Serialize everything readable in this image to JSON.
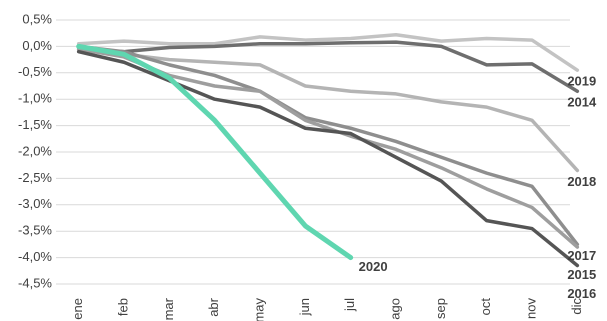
{
  "chart_data": {
    "type": "line",
    "categories": [
      "ene",
      "feb",
      "mar",
      "abr",
      "may",
      "jun",
      "jul",
      "ago",
      "sep",
      "oct",
      "nov",
      "dic"
    ],
    "series": [
      {
        "name": "2019",
        "color": "#c3c3c3",
        "values": [
          0.05,
          0.1,
          0.05,
          0.05,
          0.18,
          0.12,
          0.15,
          0.22,
          0.1,
          0.15,
          0.12,
          -0.45
        ]
      },
      {
        "name": "2014",
        "color": "#6e6e6e",
        "values": [
          -0.05,
          -0.1,
          -0.02,
          0,
          0.05,
          0.05,
          0.07,
          0.08,
          0,
          -0.35,
          -0.33,
          -0.85
        ]
      },
      {
        "name": "2018",
        "color": "#b4b4b4",
        "values": [
          -0.02,
          -0.15,
          -0.25,
          -0.3,
          -0.35,
          -0.75,
          -0.85,
          -0.9,
          -1.05,
          -1.15,
          -1.4,
          -2.35
        ]
      },
      {
        "name": "2017",
        "color": "#8e8e8e",
        "values": [
          0,
          -0.1,
          -0.35,
          -0.55,
          -0.85,
          -1.35,
          -1.55,
          -1.8,
          -2.1,
          -2.4,
          -2.65,
          -3.75
        ]
      },
      {
        "name": "2015",
        "color": "#9e9e9e",
        "values": [
          -0.05,
          -0.2,
          -0.55,
          -0.75,
          -0.85,
          -1.4,
          -1.7,
          -1.95,
          -2.3,
          -2.7,
          -3.05,
          -3.8
        ]
      },
      {
        "name": "2016",
        "color": "#555555",
        "values": [
          -0.1,
          -0.3,
          -0.65,
          -1.0,
          -1.15,
          -1.55,
          -1.65,
          -2.1,
          -2.55,
          -3.3,
          -3.45,
          -4.15
        ]
      },
      {
        "name": "2020",
        "color": "#5fd6b0",
        "values": [
          0,
          -0.15,
          -0.6,
          -1.4,
          -2.4,
          -3.4,
          -4.0,
          null,
          null,
          null,
          null,
          null
        ]
      }
    ],
    "ylim": [
      -4.5,
      0.5
    ],
    "yticks": [
      {
        "value": 0.5,
        "label": "0,5%"
      },
      {
        "value": 0,
        "label": "0,0%"
      },
      {
        "value": -0.5,
        "label": "-0,5%"
      },
      {
        "value": -1,
        "label": "-1,0%"
      },
      {
        "value": -1.5,
        "label": "-1,5%"
      },
      {
        "value": -2,
        "label": "-2,0%"
      },
      {
        "value": -2.5,
        "label": "-2,5%"
      },
      {
        "value": -3,
        "label": "-3,0%"
      },
      {
        "value": -3.5,
        "label": "-3,5%"
      },
      {
        "value": -4,
        "label": "-4,0%"
      },
      {
        "value": -4.5,
        "label": "-4,5%"
      }
    ],
    "grid": true
  }
}
